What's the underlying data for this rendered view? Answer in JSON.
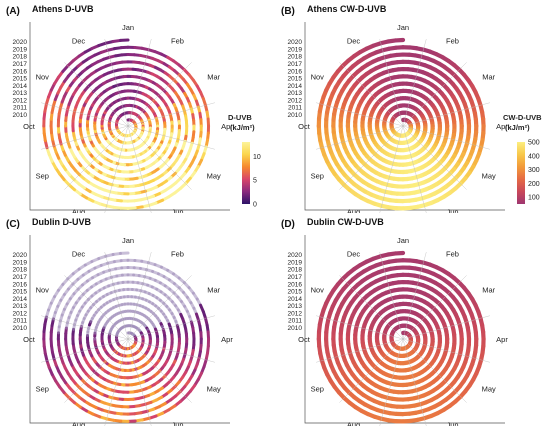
{
  "chart_data": [
    {
      "type": "area",
      "panel_letter": "(A)",
      "title": "Athens D-UVB",
      "months": [
        "Jan",
        "Feb",
        "Mar",
        "Apr",
        "May",
        "Jun",
        "Jul",
        "Aug",
        "Sep",
        "Oct",
        "Nov",
        "Dec"
      ],
      "years": [
        "2010",
        "2011",
        "2012",
        "2013",
        "2014",
        "2015",
        "2016",
        "2017",
        "2018",
        "2019",
        "2020"
      ],
      "legend": {
        "title": "D-UVB",
        "unit": "(kJ/m²)",
        "ticks": [
          "0",
          "5",
          "10"
        ],
        "range": [
          0,
          13
        ]
      },
      "monthly_values": [
        3,
        5,
        8,
        11,
        13,
        14,
        14,
        12.5,
        9,
        5.5,
        3,
        2.2
      ],
      "noise": true,
      "colors": [
        "#2d1268",
        "#8a2a7e",
        "#d8456a",
        "#f6892f",
        "#fbd54d",
        "#fcf39a"
      ]
    },
    {
      "type": "area",
      "panel_letter": "(B)",
      "title": "Athens CW-D-UVB",
      "months": [
        "Jan",
        "Feb",
        "Mar",
        "Apr",
        "May",
        "Jun",
        "Jul",
        "Aug",
        "Sep",
        "Oct",
        "Nov",
        "Dec"
      ],
      "years": [
        "2010",
        "2011",
        "2012",
        "2013",
        "2014",
        "2015",
        "2016",
        "2017",
        "2018",
        "2019",
        "2020"
      ],
      "legend": {
        "title": "CW-D-UVB",
        "unit": "(kJ/m²)",
        "ticks": [
          "100",
          "200",
          "300",
          "400",
          "500"
        ],
        "range": [
          50,
          500
        ]
      },
      "monthly_values": [
        60,
        100,
        200,
        330,
        460,
        500,
        480,
        440,
        360,
        240,
        130,
        70
      ],
      "noise": false,
      "colors": [
        "#9e3670",
        "#c9485a",
        "#e56a44",
        "#f29a3a",
        "#f8c84b",
        "#fcee80"
      ]
    },
    {
      "type": "area",
      "panel_letter": "(C)",
      "title": "Dublin D-UVB",
      "months": [
        "Jan",
        "Feb",
        "Mar",
        "Apr",
        "May",
        "Jun",
        "Jul",
        "Aug",
        "Sep",
        "Oct",
        "Nov",
        "Dec"
      ],
      "years": [
        "2010",
        "2011",
        "2012",
        "2013",
        "2014",
        "2015",
        "2016",
        "2017",
        "2018",
        "2019",
        "2020"
      ],
      "legend": null,
      "monthly_values": [
        0.2,
        0.6,
        1.8,
        3.8,
        6,
        7.2,
        7,
        5.5,
        3,
        1.3,
        0.4,
        0.15
      ],
      "noise": true,
      "colors": [
        "#2d1268",
        "#8a2a7e",
        "#d8456a",
        "#f6892f",
        "#fbd54d",
        "#fcf39a"
      ],
      "scale_range": [
        0,
        13
      ]
    },
    {
      "type": "area",
      "panel_letter": "(D)",
      "title": "Dublin CW-D-UVB",
      "months": [
        "Jan",
        "Feb",
        "Mar",
        "Apr",
        "May",
        "Jun",
        "Jul",
        "Aug",
        "Sep",
        "Oct",
        "Nov",
        "Dec"
      ],
      "years": [
        "2010",
        "2011",
        "2012",
        "2013",
        "2014",
        "2015",
        "2016",
        "2017",
        "2018",
        "2019",
        "2020"
      ],
      "legend": null,
      "monthly_values": [
        70,
        90,
        130,
        180,
        230,
        260,
        260,
        230,
        170,
        120,
        85,
        70
      ],
      "noise": false,
      "colors": [
        "#9e3670",
        "#c9485a",
        "#e56a44",
        "#f29a3a",
        "#f8c84b",
        "#fcee80"
      ],
      "scale_range": [
        50,
        500
      ]
    }
  ]
}
